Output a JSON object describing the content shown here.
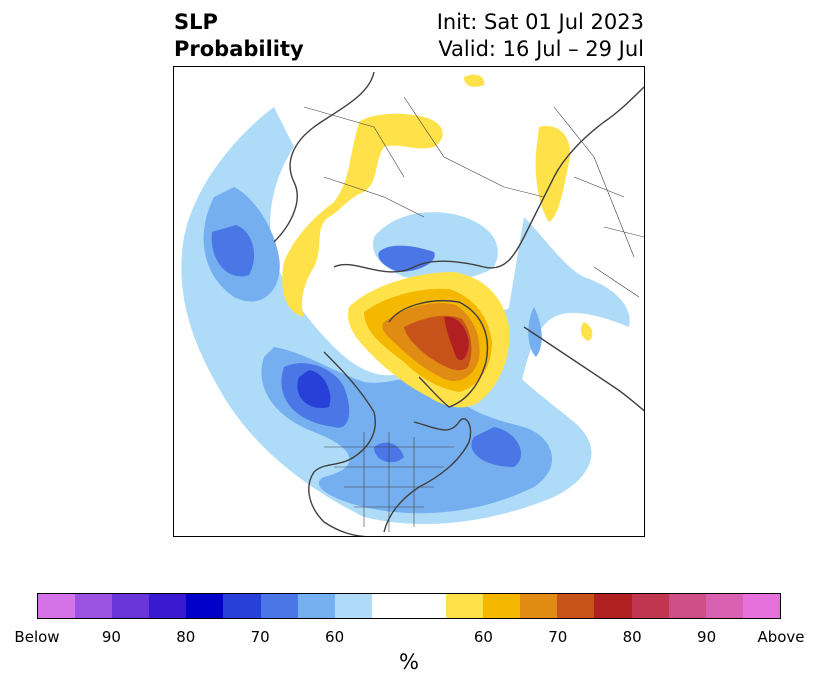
{
  "title": {
    "line1_left": "SLP",
    "line2_left": "Probability",
    "line1_right": "Init: Sat 01 Jul 2023",
    "line2_right": "Valid: 16 Jul – 29 Jul"
  },
  "colorbar": {
    "colors": [
      "#d473e8",
      "#9b52e0",
      "#6a35d8",
      "#3a1ad0",
      "#0000c8",
      "#2740d8",
      "#4a76e6",
      "#76aff0",
      "#aedcf8",
      "#ffffff",
      "#ffffff",
      "#ffe24a",
      "#f5b800",
      "#e08c14",
      "#c8531a",
      "#b02020",
      "#c03650",
      "#cc4f86",
      "#d860b0",
      "#e670dc"
    ],
    "tick_labels": [
      "Below",
      "90",
      "80",
      "70",
      "60",
      "60",
      "70",
      "80",
      "90",
      "Above"
    ],
    "unit": "%"
  },
  "map": {
    "colors": {
      "below_60": "#aedcf8",
      "below_70": "#76aff0",
      "below_80": "#4a76e6",
      "below_90": "#2740d8",
      "above_60": "#ffe24a",
      "above_70": "#f5b800",
      "above_80": "#e08c14",
      "above_90": "#c8531a",
      "above_max": "#b02020",
      "coastline": "#404040"
    }
  }
}
